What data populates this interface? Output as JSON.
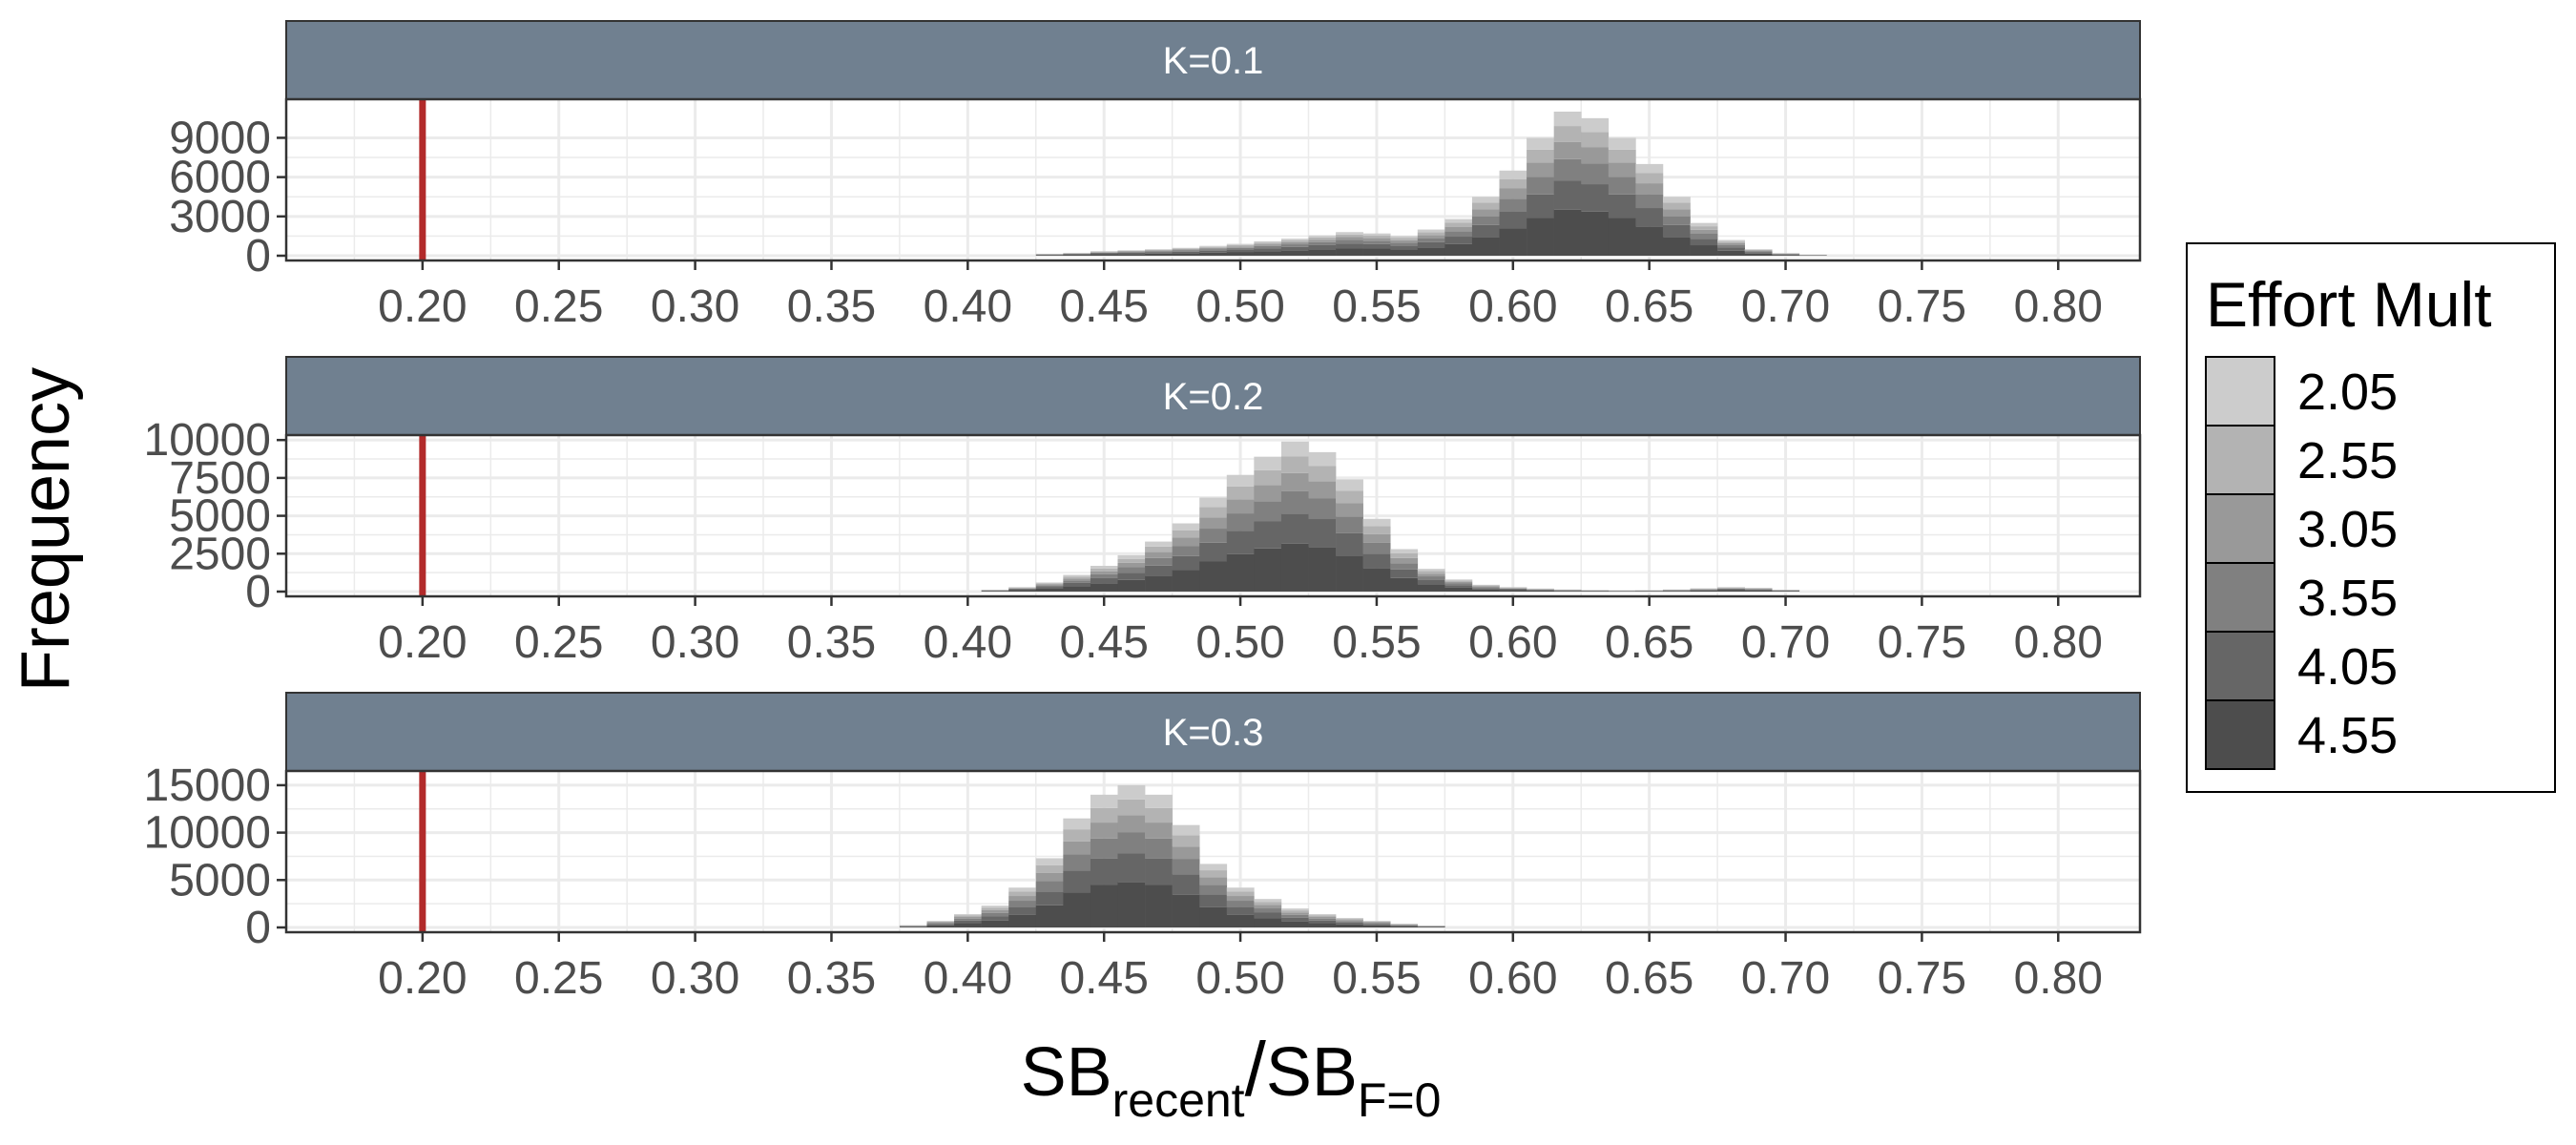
{
  "chart_data": {
    "type": "bar",
    "subtype": "stacked-histogram-facets",
    "ylabel": "Frequency",
    "xlabel": {
      "main": "SB",
      "sub1": "recent",
      "sep": "/",
      "main2": "SB",
      "sub2": "F=0"
    },
    "xlim": [
      0.15,
      0.83
    ],
    "xticks": [
      "0.20",
      "0.25",
      "0.30",
      "0.35",
      "0.40",
      "0.45",
      "0.50",
      "0.55",
      "0.60",
      "0.65",
      "0.70",
      "0.75",
      "0.80"
    ],
    "xtick_values": [
      0.2,
      0.25,
      0.3,
      0.35,
      0.4,
      0.45,
      0.5,
      0.55,
      0.6,
      0.65,
      0.7,
      0.75,
      0.8
    ],
    "reference_line": {
      "x": 0.2,
      "color": "#b22a2a"
    },
    "bin_width": 0.01,
    "colors": {
      "strip_bg": "#708090",
      "grid": "#ebebeb",
      "series": [
        "#cccccc",
        "#b3b3b3",
        "#999999",
        "#808080",
        "#666666",
        "#4d4d4d"
      ]
    },
    "legend": {
      "title": "Effort Mult",
      "position": "right",
      "entries": [
        "2.05",
        "2.55",
        "3.05",
        "3.55",
        "4.05",
        "4.55"
      ]
    },
    "series_names": [
      "2.05",
      "2.55",
      "3.05",
      "3.55",
      "4.05",
      "4.55"
    ],
    "panels": [
      {
        "label": "K=0.1",
        "yticks": [
          "9000",
          "6000",
          "3000",
          "0"
        ],
        "ytick_values": [
          9000,
          6000,
          3000,
          0
        ],
        "ylim": [
          0,
          11800
        ],
        "totals": [
          [
            0.43,
            150
          ],
          [
            0.44,
            220
          ],
          [
            0.45,
            350
          ],
          [
            0.46,
            420
          ],
          [
            0.47,
            500
          ],
          [
            0.48,
            600
          ],
          [
            0.49,
            750
          ],
          [
            0.5,
            900
          ],
          [
            0.51,
            1100
          ],
          [
            0.52,
            1300
          ],
          [
            0.53,
            1550
          ],
          [
            0.54,
            1800
          ],
          [
            0.55,
            1700
          ],
          [
            0.56,
            1500
          ],
          [
            0.57,
            2000
          ],
          [
            0.58,
            2800
          ],
          [
            0.59,
            4500
          ],
          [
            0.6,
            6500
          ],
          [
            0.61,
            9000
          ],
          [
            0.62,
            11000
          ],
          [
            0.63,
            10500
          ],
          [
            0.64,
            9000
          ],
          [
            0.65,
            7000
          ],
          [
            0.66,
            4500
          ],
          [
            0.67,
            2500
          ],
          [
            0.68,
            1200
          ],
          [
            0.69,
            500
          ],
          [
            0.7,
            200
          ],
          [
            0.71,
            80
          ]
        ]
      },
      {
        "label": "K=0.2",
        "yticks": [
          "10000",
          "7500",
          "5000",
          "2500",
          "0"
        ],
        "ytick_values": [
          10000,
          7500,
          5000,
          2500,
          0
        ],
        "ylim": [
          0,
          10200
        ],
        "totals": [
          [
            0.41,
            120
          ],
          [
            0.42,
            300
          ],
          [
            0.43,
            600
          ],
          [
            0.44,
            1100
          ],
          [
            0.45,
            1700
          ],
          [
            0.46,
            2400
          ],
          [
            0.47,
            3300
          ],
          [
            0.48,
            4500
          ],
          [
            0.49,
            6200
          ],
          [
            0.5,
            7700
          ],
          [
            0.51,
            8900
          ],
          [
            0.52,
            9900
          ],
          [
            0.53,
            9200
          ],
          [
            0.54,
            7400
          ],
          [
            0.55,
            4800
          ],
          [
            0.56,
            2800
          ],
          [
            0.57,
            1500
          ],
          [
            0.58,
            800
          ],
          [
            0.59,
            450
          ],
          [
            0.6,
            300
          ],
          [
            0.61,
            200
          ],
          [
            0.62,
            140
          ],
          [
            0.63,
            100
          ],
          [
            0.64,
            80
          ],
          [
            0.65,
            90
          ],
          [
            0.66,
            140
          ],
          [
            0.67,
            220
          ],
          [
            0.68,
            300
          ],
          [
            0.69,
            250
          ],
          [
            0.7,
            120
          ]
        ]
      },
      {
        "label": "K=0.3",
        "yticks": [
          "15000",
          "10000",
          "5000",
          "0"
        ],
        "ytick_values": [
          15000,
          10000,
          5000,
          0
        ],
        "ylim": [
          0,
          16300
        ],
        "totals": [
          [
            0.38,
            250
          ],
          [
            0.39,
            700
          ],
          [
            0.4,
            1400
          ],
          [
            0.41,
            2300
          ],
          [
            0.42,
            4200
          ],
          [
            0.43,
            7300
          ],
          [
            0.44,
            11500
          ],
          [
            0.45,
            14000
          ],
          [
            0.46,
            15000
          ],
          [
            0.47,
            14000
          ],
          [
            0.48,
            10800
          ],
          [
            0.49,
            6700
          ],
          [
            0.5,
            4200
          ],
          [
            0.51,
            3000
          ],
          [
            0.52,
            2000
          ],
          [
            0.53,
            1400
          ],
          [
            0.54,
            1000
          ],
          [
            0.55,
            700
          ],
          [
            0.56,
            400
          ],
          [
            0.57,
            200
          ]
        ]
      }
    ]
  }
}
